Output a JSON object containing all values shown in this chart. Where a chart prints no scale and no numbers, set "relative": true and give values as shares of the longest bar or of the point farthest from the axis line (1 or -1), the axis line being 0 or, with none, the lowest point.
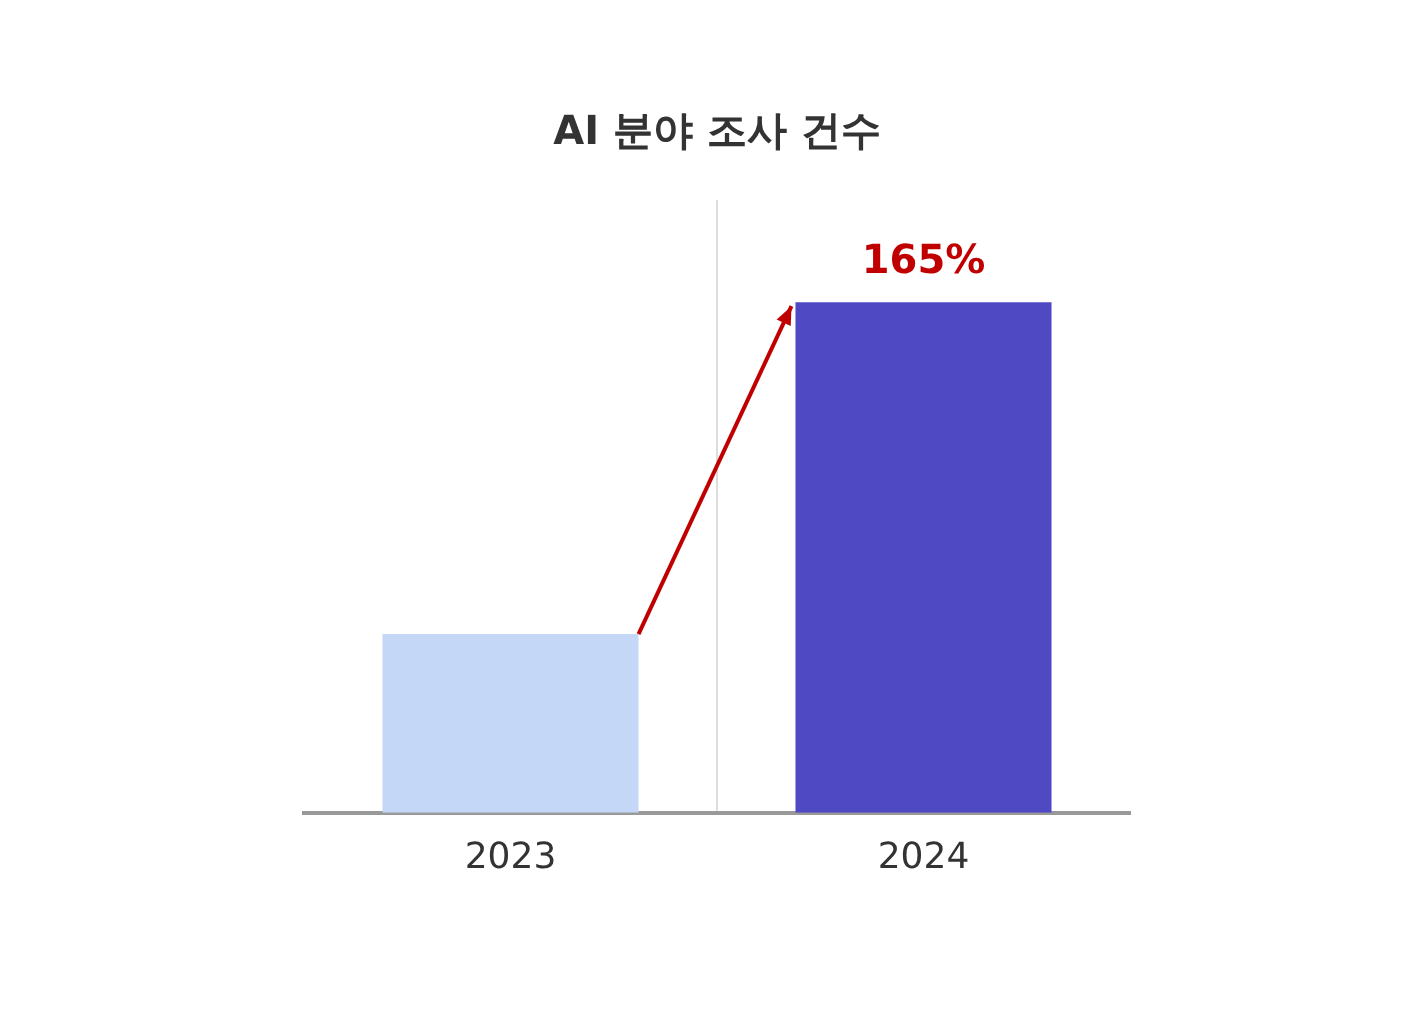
{
  "chart_data": {
    "type": "bar",
    "title": "AI 분야 조사 건수",
    "categories": [
      "2023",
      "2024"
    ],
    "relative": true,
    "values": [
      0.35,
      1
    ],
    "colors": [
      "#c5d7f7",
      "#4f4ac4"
    ],
    "annotations": [
      {
        "text": "165%",
        "x": "2024",
        "y": 1
      }
    ],
    "legend": false,
    "grid": "x"
  }
}
